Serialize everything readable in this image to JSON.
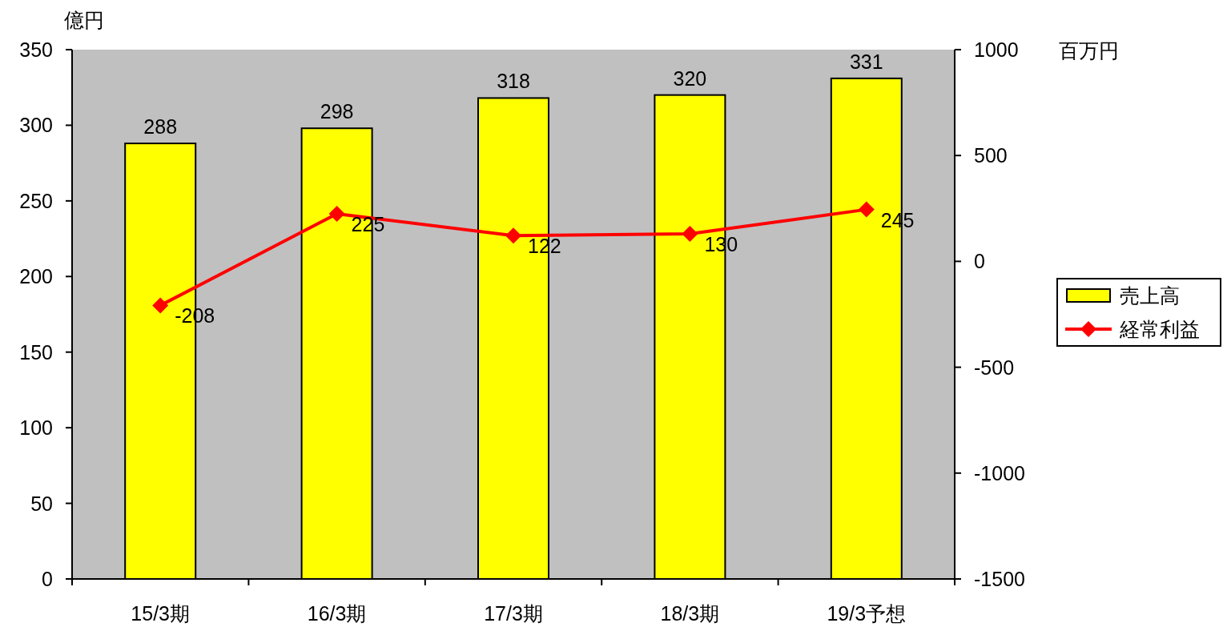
{
  "chart_data": {
    "type": "bar",
    "ylabel": "億円",
    "y2label": "百万円",
    "categories": [
      "15/3期",
      "16/3期",
      "17/3期",
      "18/3期",
      "19/3予想"
    ],
    "series": [
      {
        "name": "売上高",
        "color": "#ffff00",
        "values": [
          288,
          298,
          318,
          320,
          331
        ]
      },
      {
        "name": "経常利益",
        "type": "line",
        "axis": "y2",
        "color": "#ff0000",
        "values": [
          -208,
          225,
          122,
          130,
          245
        ]
      }
    ],
    "ylim": [
      0,
      350
    ],
    "yticks": [
      0,
      50,
      100,
      150,
      200,
      250,
      300,
      350
    ],
    "y2lim": [
      -1500,
      1000
    ],
    "y2ticks": [
      -1500,
      -1000,
      -500,
      0,
      500,
      1000
    ],
    "data_labels": true,
    "legend": "right",
    "marker": "diamond",
    "grid": false
  }
}
